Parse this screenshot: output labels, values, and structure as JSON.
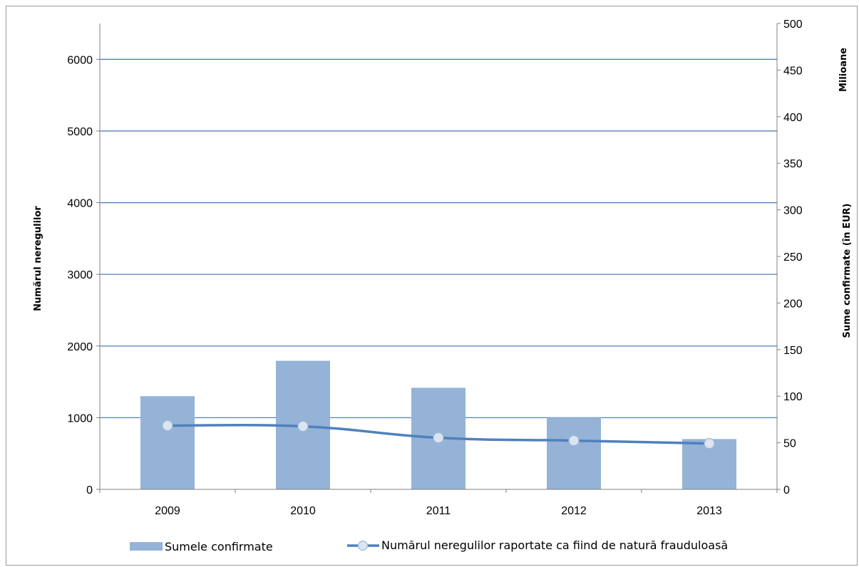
{
  "chart_data": {
    "type": "bar+line",
    "categories": [
      "2009",
      "2010",
      "2011",
      "2012",
      "2013"
    ],
    "series": [
      {
        "name": "Sumele confirmate",
        "type": "bar",
        "axis": "right",
        "values": [
          100,
          138,
          109,
          77,
          54
        ]
      },
      {
        "name": "Numărul neregulilor raportate ca fiind de natură frauduloasă",
        "type": "line",
        "axis": "left",
        "values": [
          890,
          880,
          720,
          680,
          640
        ]
      }
    ],
    "y_left": {
      "label": "Numărul neregulilor",
      "min": 0,
      "max": 6500,
      "ticks": [
        "0",
        "1000",
        "2000",
        "3000",
        "4000",
        "5000",
        "6000"
      ]
    },
    "y_right": {
      "label": "Sume confirmate (în EUR)",
      "unit_label": "Milioane",
      "min": 0,
      "max": 500,
      "ticks": [
        "0",
        "50",
        "100",
        "150",
        "200",
        "250",
        "300",
        "350",
        "400",
        "450",
        "500"
      ]
    },
    "grid": true,
    "legend_position": "bottom",
    "colors": {
      "bar": "#95b3d7",
      "line": "#4f81bd",
      "gridline": "#4f81bd",
      "marker_fill": "#dbe5f1"
    }
  }
}
